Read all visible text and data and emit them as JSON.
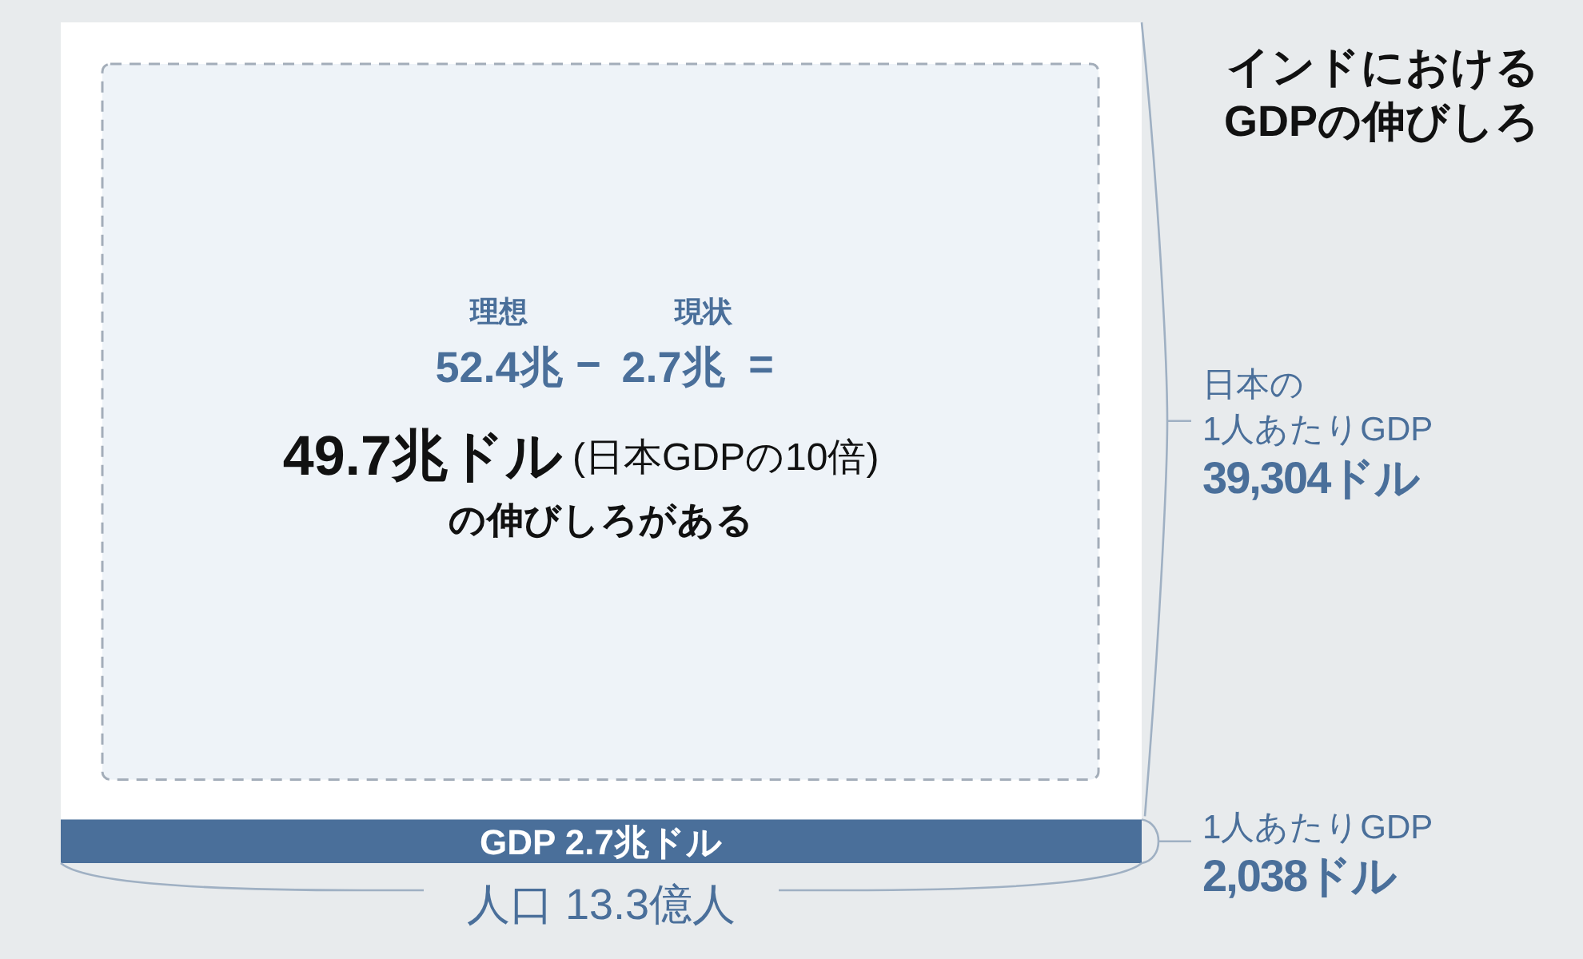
{
  "chart_data": {
    "type": "other",
    "title": "インドにおける\nGDPの伸びしろ",
    "categories": [
      "日本の\n1人あたりGDP",
      "1人あたりGDP"
    ],
    "values": [
      39304,
      2038
    ],
    "value_labels": [
      "39,304ドル",
      "2,038ドル"
    ],
    "colors": [
      "#ffffff",
      "#4a6f9a"
    ],
    "xlabel": "人口 13.3億人",
    "annotations": [
      "GDP 2.7兆ドル",
      "理想",
      "52.4兆",
      "−",
      "現状",
      "2.7兆",
      "=",
      "49.7兆ドル",
      "(日本GDPの10倍)",
      "の伸びしろがある"
    ]
  }
}
